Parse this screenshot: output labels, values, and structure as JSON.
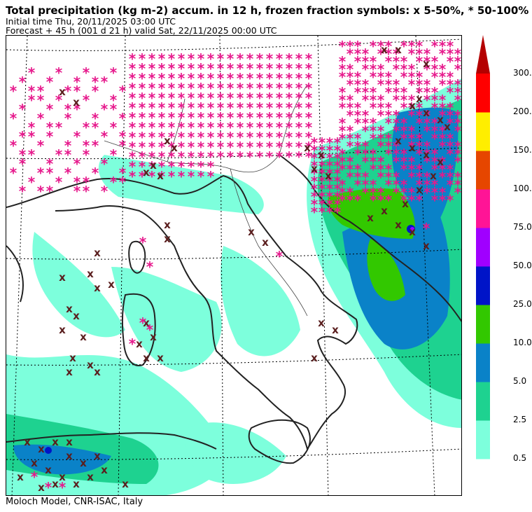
{
  "header": {
    "title": "Total precipitation (kg m-2) accum. in 12 h, frozen fraction symbols: x 5-50%, * 50-100%",
    "initial_time": "Initial time  Thu, 20/11/2025  03:00 UTC",
    "forecast": "Forecast  +  45 h  (001 d 21 h)  valid Sat, 22/11/2025 00:00 UTC"
  },
  "footer": {
    "credit": "Moloch Model, CNR-ISAC, Italy"
  },
  "legend": {
    "title": "",
    "levels": [
      {
        "label": "0.5",
        "color": "#7dffdc"
      },
      {
        "label": "2.5",
        "color": "#1ed290"
      },
      {
        "label": "5.0",
        "color": "#0a82c8"
      },
      {
        "label": "10.0",
        "color": "#32c800"
      },
      {
        "label": "25.0",
        "color": "#0014c8"
      },
      {
        "label": "50.0",
        "color": "#a000ff"
      },
      {
        "label": "75.0",
        "color": "#ff1496"
      },
      {
        "label": "100.0",
        "color": "#e64600"
      },
      {
        "label": "150.0",
        "color": "#ffee00"
      },
      {
        "label": "200.0",
        "color": "#ff0000"
      },
      {
        "label": "300.0",
        "color": "#b40000"
      }
    ]
  },
  "map": {
    "symbols": {
      "frozen_50_100": "*",
      "frozen_5_50": "x",
      "snow_color": "#e6198c",
      "mixed_color": "#5a1e1e"
    }
  }
}
